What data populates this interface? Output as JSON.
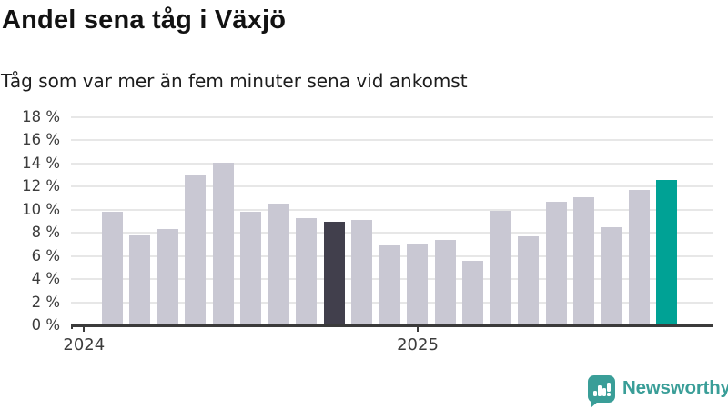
{
  "header": {
    "title": "Andel sena tåg i Växjö",
    "subtitle": "Tåg som var mer än fem minuter sena vid ankomst"
  },
  "chart_data": {
    "type": "bar",
    "title": "Andel sena tåg i Växjö",
    "subtitle": "Tåg som var mer än fem minuter sena vid ankomst",
    "unit": "%",
    "values": [
      9.8,
      7.8,
      8.3,
      13.0,
      14.1,
      9.8,
      10.5,
      9.3,
      9.0,
      9.1,
      6.9,
      7.1,
      7.4,
      5.6,
      9.9,
      7.7,
      10.7,
      11.1,
      8.5,
      11.7,
      12.6
    ],
    "ylim": [
      0,
      18
    ],
    "y_tick_labels": [
      "18 %",
      "16 %",
      "14 %",
      "12 %",
      "10 %",
      "8 %",
      "6 %",
      "4 %",
      "2 %",
      "0 %"
    ],
    "x_tick_labels": [
      "2024",
      "2025"
    ],
    "grid": true,
    "legend": "none",
    "colors": {
      "default": "#c9c8d3",
      "dark": "#413f4c",
      "accent": "#00a295"
    },
    "dark_bar_index": 8,
    "accent_bar_index": 20
  },
  "footer": {
    "brand": "Newsworthy",
    "brand_color": "#3a9e98",
    "logo_icon": "newsworthy-chart-bubble-icon"
  }
}
